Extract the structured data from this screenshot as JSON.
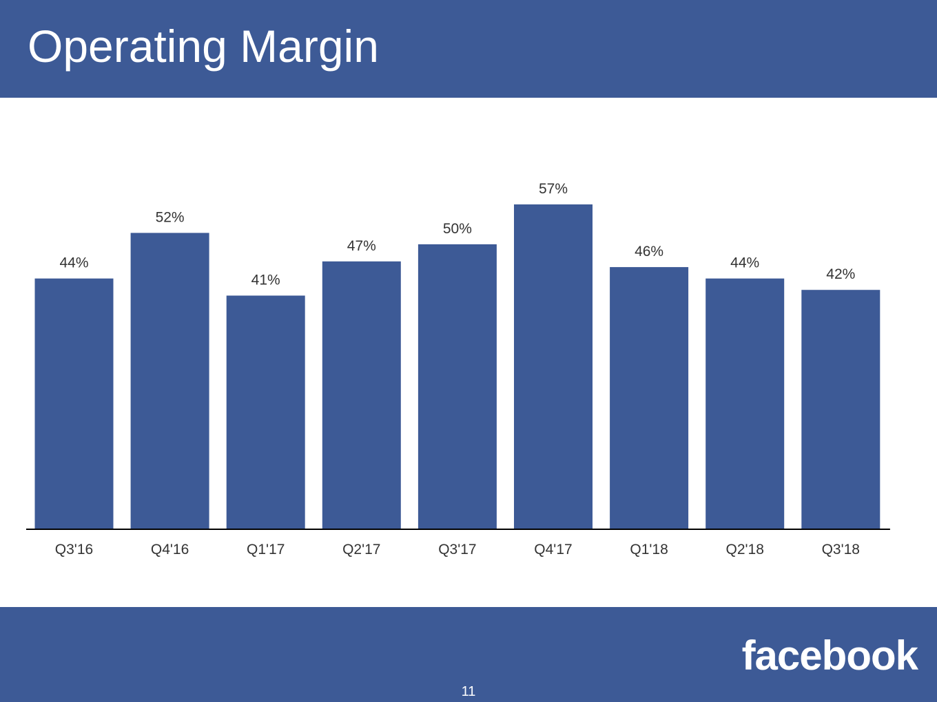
{
  "colors": {
    "brand": "#3d5a96",
    "text": "#333333",
    "axis": "#000000"
  },
  "slide": {
    "title": "Operating Margin",
    "page_number": "11",
    "logo_text": "facebook"
  },
  "chart_data": {
    "type": "bar",
    "title": "Operating Margin",
    "xlabel": "",
    "ylabel": "",
    "categories": [
      "Q3'16",
      "Q4'16",
      "Q1'17",
      "Q2'17",
      "Q3'17",
      "Q4'17",
      "Q1'18",
      "Q2'18",
      "Q3'18"
    ],
    "values": [
      44,
      52,
      41,
      47,
      50,
      57,
      46,
      44,
      42
    ],
    "data_labels": [
      "44%",
      "52%",
      "41%",
      "47%",
      "50%",
      "57%",
      "46%",
      "44%",
      "42%"
    ],
    "ylim": [
      0,
      57
    ],
    "grid": false,
    "legend": "none"
  }
}
